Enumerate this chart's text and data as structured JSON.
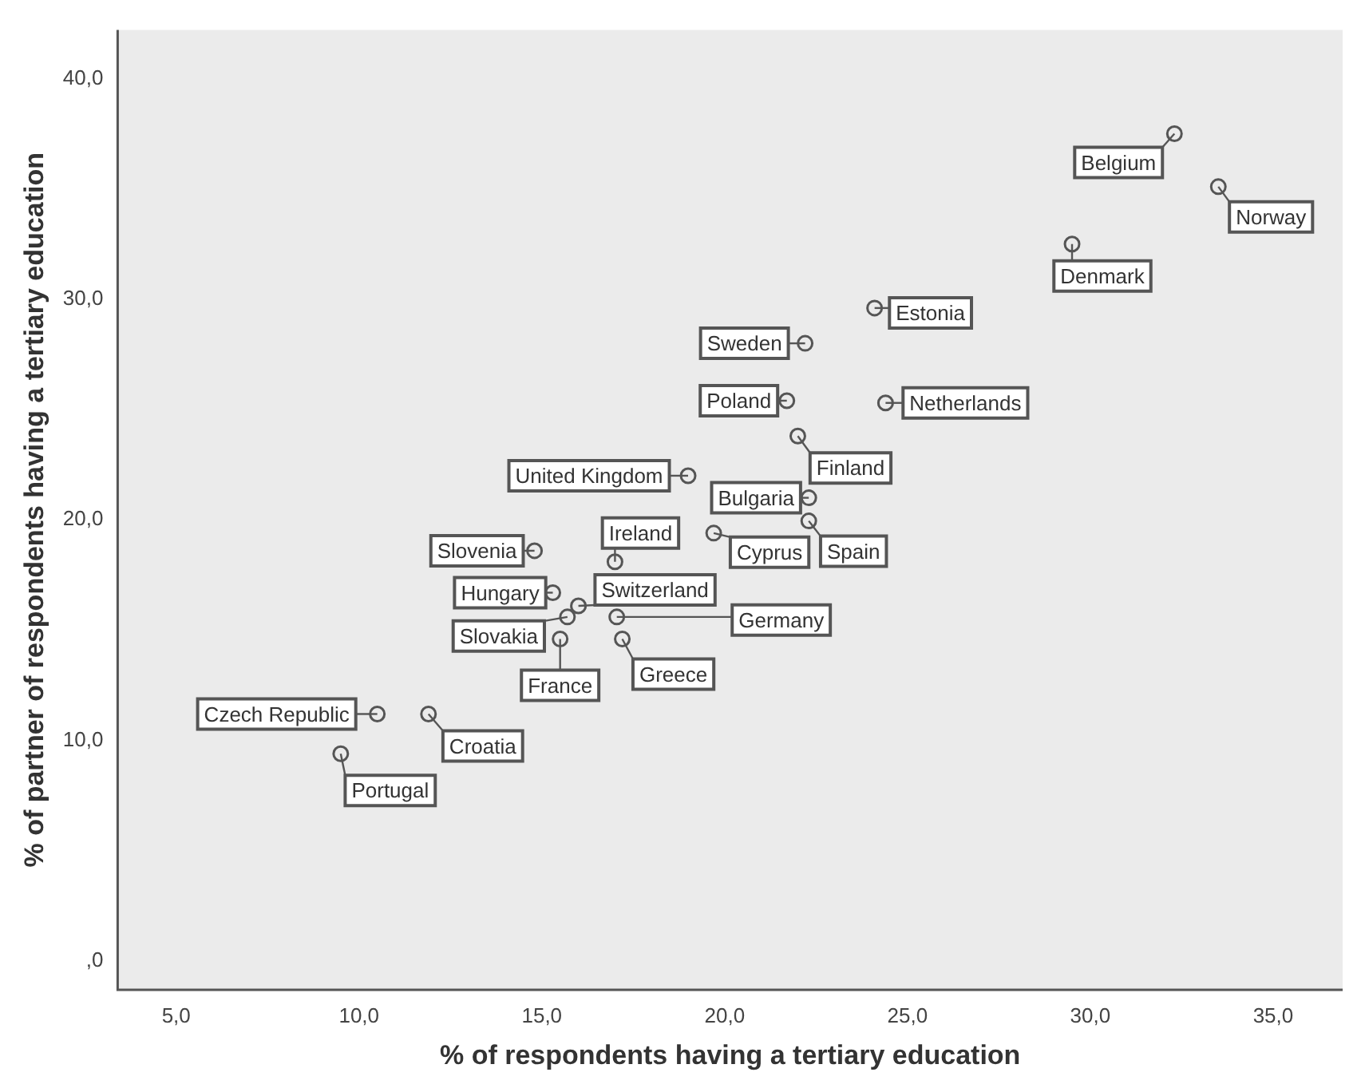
{
  "chart_data": {
    "type": "scatter",
    "xlabel": "% of respondents having a tertiary education",
    "ylabel": "% of partner of respondents having a tertiary education",
    "x": [
      32.3,
      33.5,
      29.5,
      24.1,
      22.2,
      21.7,
      24.4,
      22.0,
      19.0,
      22.3,
      22.3,
      19.7,
      17.0,
      17.05,
      17.2,
      14.8,
      15.3,
      16.0,
      15.7,
      15.5,
      10.5,
      11.9,
      9.5
    ],
    "values": [
      37.5,
      35.1,
      32.5,
      29.6,
      28.0,
      25.4,
      25.3,
      23.8,
      22.0,
      21.0,
      19.95,
      19.4,
      18.1,
      15.6,
      14.6,
      18.6,
      16.7,
      16.1,
      15.6,
      14.6,
      11.2,
      11.2,
      9.4
    ],
    "color": "#555555",
    "marker": "circle",
    "xlim": [
      3.4,
      36.9
    ],
    "ylim": [
      -1.3,
      42.2
    ],
    "xticks": [
      {
        "value": 5,
        "label": "5,0"
      },
      {
        "value": 10,
        "label": "10,0"
      },
      {
        "value": 15,
        "label": "15,0"
      },
      {
        "value": 20,
        "label": "20,0"
      },
      {
        "value": 25,
        "label": "25,0"
      },
      {
        "value": 30,
        "label": "30,0"
      },
      {
        "value": 35,
        "label": "35,0"
      }
    ],
    "yticks": [
      {
        "value": 0,
        "label": ",0"
      },
      {
        "value": 10,
        "label": "10,0"
      },
      {
        "value": 20,
        "label": "20,0"
      },
      {
        "value": 30,
        "label": "30,0"
      },
      {
        "value": 40,
        "label": "40,0"
      }
    ],
    "annotations": [
      {
        "text": "Belgium",
        "x": 32.3,
        "y": 37.5
      },
      {
        "text": "Norway",
        "x": 33.5,
        "y": 35.1
      },
      {
        "text": "Denmark",
        "x": 29.5,
        "y": 32.5
      },
      {
        "text": "Estonia",
        "x": 24.1,
        "y": 29.6
      },
      {
        "text": "Sweden",
        "x": 22.2,
        "y": 28.0
      },
      {
        "text": "Poland",
        "x": 21.7,
        "y": 25.4
      },
      {
        "text": "Netherlands",
        "x": 24.4,
        "y": 25.3
      },
      {
        "text": "Finland",
        "x": 22.0,
        "y": 23.8
      },
      {
        "text": "United Kingdom",
        "x": 19.0,
        "y": 22.0
      },
      {
        "text": "Bulgaria",
        "x": 22.3,
        "y": 21.0
      },
      {
        "text": "Spain",
        "x": 22.3,
        "y": 19.95
      },
      {
        "text": "Cyprus",
        "x": 19.7,
        "y": 19.4
      },
      {
        "text": "Ireland",
        "x": 17.0,
        "y": 18.1
      },
      {
        "text": "Germany",
        "x": 17.05,
        "y": 15.6
      },
      {
        "text": "Greece",
        "x": 17.2,
        "y": 14.6
      },
      {
        "text": "Slovenia",
        "x": 14.8,
        "y": 18.6
      },
      {
        "text": "Hungary",
        "x": 15.3,
        "y": 16.7
      },
      {
        "text": "Switzerland",
        "x": 16.0,
        "y": 16.1
      },
      {
        "text": "Slovakia",
        "x": 15.7,
        "y": 15.6
      },
      {
        "text": "France",
        "x": 15.5,
        "y": 14.6
      },
      {
        "text": "Czech Republic",
        "x": 10.5,
        "y": 11.2
      },
      {
        "text": "Croatia",
        "x": 11.9,
        "y": 11.2
      },
      {
        "text": "Portugal",
        "x": 9.5,
        "y": 9.4
      }
    ]
  }
}
